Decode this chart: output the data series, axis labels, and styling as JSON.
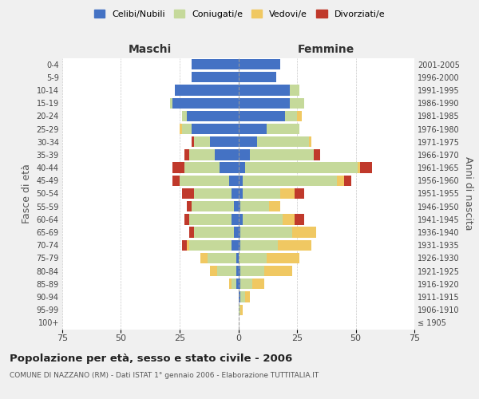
{
  "age_groups": [
    "100+",
    "95-99",
    "90-94",
    "85-89",
    "80-84",
    "75-79",
    "70-74",
    "65-69",
    "60-64",
    "55-59",
    "50-54",
    "45-49",
    "40-44",
    "35-39",
    "30-34",
    "25-29",
    "20-24",
    "15-19",
    "10-14",
    "5-9",
    "0-4"
  ],
  "birth_years": [
    "≤ 1905",
    "1906-1910",
    "1911-1915",
    "1916-1920",
    "1921-1925",
    "1926-1930",
    "1931-1935",
    "1936-1940",
    "1941-1945",
    "1946-1950",
    "1951-1955",
    "1956-1960",
    "1961-1965",
    "1966-1970",
    "1971-1975",
    "1976-1980",
    "1981-1985",
    "1986-1990",
    "1991-1995",
    "1996-2000",
    "2001-2005"
  ],
  "maschi": {
    "celibi": [
      0,
      0,
      0,
      1,
      1,
      1,
      3,
      2,
      3,
      2,
      3,
      4,
      8,
      10,
      12,
      20,
      22,
      28,
      27,
      20,
      20
    ],
    "coniugati": [
      0,
      0,
      0,
      2,
      8,
      12,
      18,
      17,
      18,
      18,
      16,
      21,
      15,
      11,
      7,
      4,
      2,
      1,
      0,
      0,
      0
    ],
    "vedovi": [
      0,
      0,
      0,
      1,
      3,
      3,
      1,
      0,
      0,
      0,
      0,
      0,
      0,
      0,
      0,
      1,
      0,
      0,
      0,
      0,
      0
    ],
    "divorziati": [
      0,
      0,
      0,
      0,
      0,
      0,
      2,
      2,
      2,
      2,
      5,
      3,
      5,
      2,
      1,
      0,
      0,
      0,
      0,
      0,
      0
    ]
  },
  "femmine": {
    "nubili": [
      0,
      0,
      1,
      1,
      1,
      0,
      1,
      1,
      2,
      1,
      2,
      2,
      3,
      5,
      8,
      12,
      20,
      22,
      22,
      16,
      18
    ],
    "coniugate": [
      0,
      1,
      2,
      5,
      10,
      12,
      16,
      22,
      17,
      12,
      16,
      40,
      48,
      27,
      22,
      14,
      5,
      6,
      4,
      0,
      0
    ],
    "vedove": [
      0,
      1,
      2,
      5,
      12,
      14,
      14,
      10,
      5,
      5,
      6,
      3,
      1,
      0,
      1,
      0,
      2,
      0,
      0,
      0,
      0
    ],
    "divorziate": [
      0,
      0,
      0,
      0,
      0,
      0,
      0,
      0,
      4,
      0,
      4,
      3,
      5,
      3,
      0,
      0,
      0,
      0,
      0,
      0,
      0
    ]
  },
  "colors": {
    "celibi": "#4472C4",
    "coniugati": "#C5D99A",
    "vedovi": "#F0C862",
    "divorziati": "#C0392B"
  },
  "title": "Popolazione per età, sesso e stato civile - 2006",
  "subtitle": "COMUNE DI NAZZANO (RM) - Dati ISTAT 1° gennaio 2006 - Elaborazione TUTTITALIA.IT",
  "xlabel_left": "Maschi",
  "xlabel_right": "Femmine",
  "ylabel_left": "Fasce di età",
  "ylabel_right": "Anni di nascita",
  "xlim": 75,
  "legend_labels": [
    "Celibi/Nubili",
    "Coniugati/e",
    "Vedovi/e",
    "Divorziati/e"
  ],
  "background_color": "#f0f0f0",
  "plot_bg_color": "#ffffff"
}
